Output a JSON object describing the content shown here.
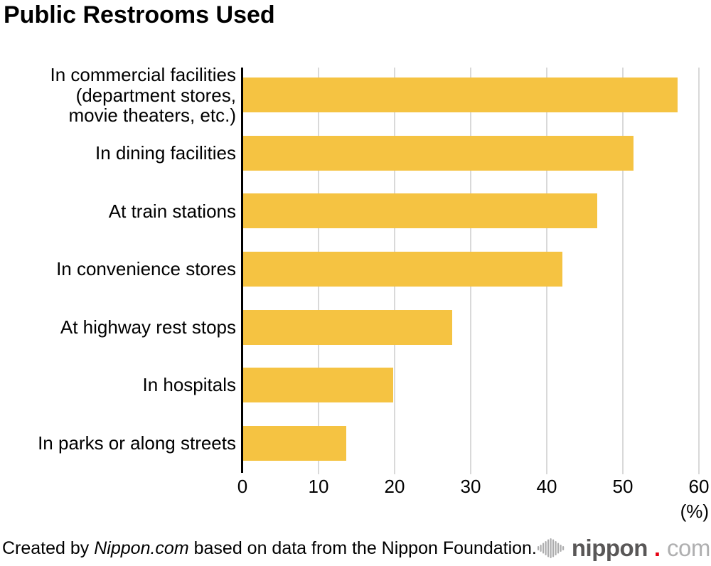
{
  "title": "Public Restrooms Used",
  "chart_data": {
    "type": "bar",
    "orientation": "horizontal",
    "title": "Public Restrooms Used",
    "categories": [
      "In commercial facilities\n(department stores,\nmovie theaters, etc.)",
      "In dining facilities",
      "At train stations",
      "In convenience stores",
      "At highway rest stops",
      "In hospitals",
      "In parks or along streets"
    ],
    "values": [
      57.2,
      51.4,
      46.6,
      42.1,
      27.6,
      19.8,
      13.6
    ],
    "xlim": [
      0,
      60
    ],
    "xticks": [
      0,
      10,
      20,
      30,
      40,
      50,
      60
    ],
    "x_unit_label": "(%)",
    "grid": true,
    "legend": false,
    "bar_color": "#F5C342",
    "grid_color": "#D9D9D9",
    "axis_color": "#000000"
  },
  "footer": {
    "credit": {
      "prefix": "Created by ",
      "source_italic": "Nippon.com",
      "suffix": " based on data from the Nippon Foundation."
    },
    "logo": {
      "icon": "soundwave-icon",
      "word": "nippon",
      "dot": ".",
      "tld": "com",
      "word_color": "#595757",
      "dot_color": "#E60012",
      "tld_color": "#AFAFB0",
      "icon_color": "#ACACAD"
    }
  }
}
